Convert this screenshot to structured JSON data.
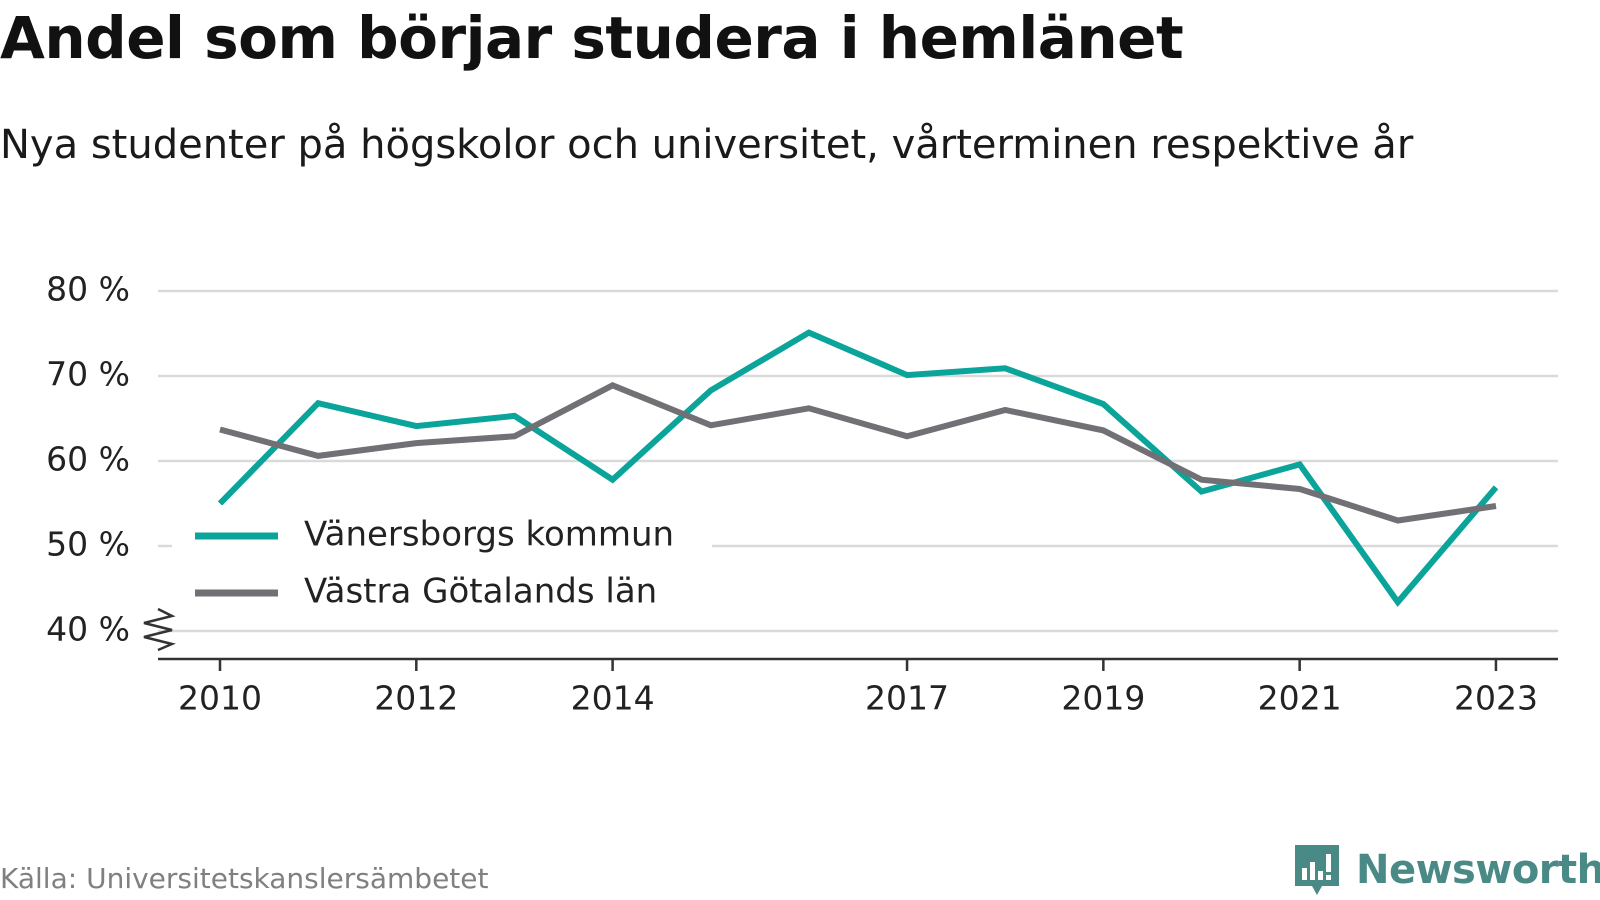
{
  "header": {
    "title": "Andel som börjar studera i hemlänet",
    "subtitle": "Nya studenter på högskolor och universitet, vårterminen respektive år"
  },
  "footer": {
    "source": "Källa: Universitetskanslersämbetet",
    "brand": "Newsworthy"
  },
  "colors": {
    "series_1": "#0aa49a",
    "series_2": "#717075",
    "grid": "#dadada",
    "axis": "#333333",
    "brand": "#4a8a86"
  },
  "chart_data": {
    "type": "line",
    "title": "Andel som börjar studera i hemlänet",
    "subtitle": "Nya studenter på högskolor och universitet, vårterminen respektive år",
    "x": [
      2010,
      2011,
      2012,
      2013,
      2014,
      2015,
      2016,
      2017,
      2018,
      2019,
      2020,
      2021,
      2022,
      2023
    ],
    "x_ticks": [
      2010,
      2012,
      2014,
      2017,
      2019,
      2021,
      2023
    ],
    "y_ticks": [
      40,
      50,
      60,
      70,
      80
    ],
    "y_tick_labels": [
      "40 %",
      "50 %",
      "60 %",
      "70 %",
      "80 %"
    ],
    "ylim": [
      36.7,
      80
    ],
    "y_axis_break": true,
    "grid": true,
    "legend_position": "bottom-left",
    "series": [
      {
        "name": "Vänersborgs kommun",
        "color": "#0aa49a",
        "values": [
          55.0,
          66.8,
          64.1,
          65.3,
          57.8,
          68.3,
          75.1,
          70.1,
          70.9,
          66.7,
          56.4,
          59.6,
          43.4,
          56.9
        ]
      },
      {
        "name": "Västra Götalands län",
        "color": "#717075",
        "values": [
          63.7,
          60.6,
          62.1,
          62.9,
          68.9,
          64.2,
          66.2,
          62.9,
          66.0,
          63.6,
          57.8,
          56.7,
          53.0,
          54.7
        ]
      }
    ]
  }
}
